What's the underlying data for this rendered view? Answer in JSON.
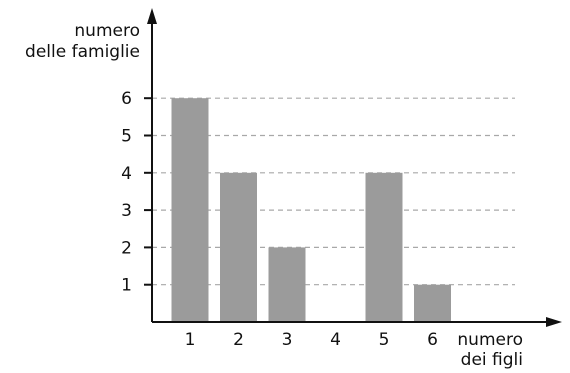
{
  "chart_data": {
    "type": "bar",
    "categories": [
      "1",
      "2",
      "3",
      "4",
      "5",
      "6"
    ],
    "values": [
      6,
      4,
      2,
      0,
      4,
      1
    ],
    "ylabel": [
      "numero",
      "delle famiglie"
    ],
    "xlabel": [
      "numero",
      "dei figli"
    ],
    "yticks": [
      "1",
      "2",
      "3",
      "4",
      "5",
      "6"
    ],
    "ylim": [
      0,
      6
    ],
    "grid": "horizontal-dashed",
    "legend": "none"
  },
  "colors": {
    "bar": "#9b9b9b",
    "axis": "#111111",
    "grid": "#a8a8a8",
    "text": "#111111"
  }
}
